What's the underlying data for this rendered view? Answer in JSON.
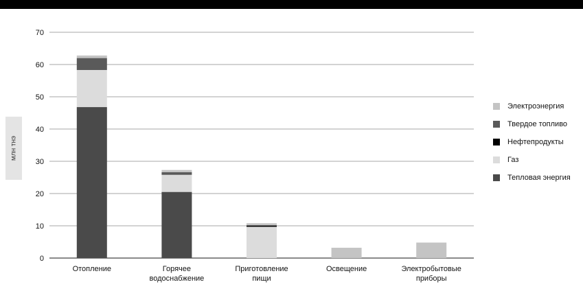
{
  "chart_data": {
    "type": "bar",
    "stacked": true,
    "ylabel": "млн тнэ",
    "ylim": [
      0,
      70
    ],
    "yticks": [
      0,
      10,
      20,
      30,
      40,
      50,
      60,
      70
    ],
    "grid": true,
    "legend_position": "right",
    "categories": [
      [
        "Отопление"
      ],
      [
        "Горячее",
        "водоснабжение"
      ],
      [
        "Приготовление",
        "пищи"
      ],
      [
        "Освещение"
      ],
      [
        "Электробытовые",
        "приборы"
      ]
    ],
    "series": [
      {
        "name": "Тепловая энергия",
        "color": "#4a4a4a",
        "values": [
          46.8,
          20.5,
          0,
          0,
          0
        ]
      },
      {
        "name": "Газ",
        "color": "#dcdcdc",
        "values": [
          11.5,
          5.3,
          9.7,
          0,
          0
        ]
      },
      {
        "name": "Нефтепродукты",
        "color": "#000000",
        "values": [
          0,
          0,
          0.4,
          0,
          0
        ]
      },
      {
        "name": "Твердое топливо",
        "color": "#5a5a5a",
        "values": [
          3.7,
          0.8,
          0,
          0,
          0
        ]
      },
      {
        "name": "Электроэнергия",
        "color": "#c4c4c4",
        "values": [
          0.8,
          0.7,
          0.7,
          3.2,
          4.8
        ]
      }
    ]
  }
}
